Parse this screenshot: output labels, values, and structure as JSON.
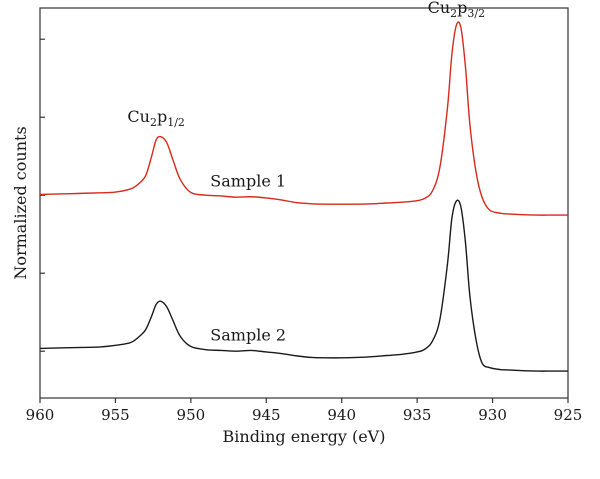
{
  "chart_data": {
    "type": "line",
    "xlabel": "Binding energy (eV)",
    "ylabel": "Normalized counts",
    "xlim": [
      960,
      925
    ],
    "x_reversed": true,
    "xticks": [
      960,
      955,
      950,
      945,
      940,
      935,
      930,
      925
    ],
    "xtick_labels": [
      "960",
      "955",
      "950",
      "945",
      "940",
      "935",
      "930",
      "925"
    ],
    "ylim": [
      0,
      1
    ],
    "ytick_values": [
      0.12,
      0.32,
      0.52,
      0.72,
      0.92
    ],
    "show_y_tick_labels": false,
    "grid": false,
    "legend": "none",
    "series": [
      {
        "name": "Sample 1",
        "color": "#d62a1b",
        "x": [
          960,
          958,
          956,
          955,
          954,
          953.5,
          953,
          952.6,
          952.3,
          952,
          951.6,
          951.2,
          950.7,
          950,
          949,
          948,
          947,
          946,
          945,
          944,
          943,
          942,
          941,
          940,
          939,
          938,
          937,
          936,
          935,
          934.5,
          934,
          933.5,
          933,
          932.7,
          932.4,
          932.1,
          931.8,
          931.5,
          931.1,
          930.7,
          930.2,
          929.5,
          929,
          928,
          927,
          926,
          925
        ],
        "values": [
          0.522,
          0.524,
          0.526,
          0.528,
          0.536,
          0.548,
          0.57,
          0.62,
          0.662,
          0.67,
          0.655,
          0.612,
          0.56,
          0.527,
          0.52,
          0.518,
          0.515,
          0.516,
          0.513,
          0.508,
          0.501,
          0.498,
          0.497,
          0.497,
          0.497,
          0.498,
          0.5,
          0.502,
          0.506,
          0.512,
          0.53,
          0.59,
          0.74,
          0.88,
          0.956,
          0.95,
          0.85,
          0.7,
          0.58,
          0.515,
          0.482,
          0.474,
          0.472,
          0.47,
          0.469,
          0.469,
          0.469
        ]
      },
      {
        "name": "Sample 2",
        "color": "#1a1a1a",
        "x": [
          960,
          958,
          956,
          955,
          954,
          953.5,
          953,
          952.6,
          952.3,
          952,
          951.6,
          951.2,
          950.7,
          950,
          949,
          948,
          947,
          946,
          945,
          944,
          943,
          942,
          941,
          940,
          939,
          938,
          937,
          936,
          935,
          934.5,
          934,
          933.5,
          933,
          932.7,
          932.4,
          932.1,
          931.8,
          931.5,
          931.1,
          930.7,
          930.2,
          929.5,
          929,
          928,
          927,
          926,
          925
        ],
        "values": [
          0.127,
          0.129,
          0.131,
          0.135,
          0.142,
          0.155,
          0.175,
          0.21,
          0.24,
          0.248,
          0.234,
          0.2,
          0.158,
          0.132,
          0.124,
          0.122,
          0.12,
          0.122,
          0.118,
          0.114,
          0.108,
          0.104,
          0.103,
          0.103,
          0.104,
          0.106,
          0.109,
          0.112,
          0.118,
          0.125,
          0.145,
          0.2,
          0.34,
          0.46,
          0.505,
          0.49,
          0.4,
          0.26,
          0.15,
          0.09,
          0.078,
          0.073,
          0.072,
          0.07,
          0.069,
          0.069,
          0.069
        ]
      }
    ],
    "annotations": [
      {
        "text_main": "Cu",
        "text_sub1": "2",
        "text_mid": "p",
        "text_sub2": "1/2",
        "x": 952.3,
        "y": 0.72
      },
      {
        "text_main": "Cu",
        "text_sub1": "2",
        "text_mid": "p",
        "text_sub2": "3/2",
        "x": 932.4,
        "y": 1.0
      }
    ],
    "series_labels": [
      {
        "text": "Sample 1",
        "x": 946.2,
        "y": 0.555
      },
      {
        "text": "Sample 2",
        "x": 946.2,
        "y": 0.16
      }
    ]
  }
}
